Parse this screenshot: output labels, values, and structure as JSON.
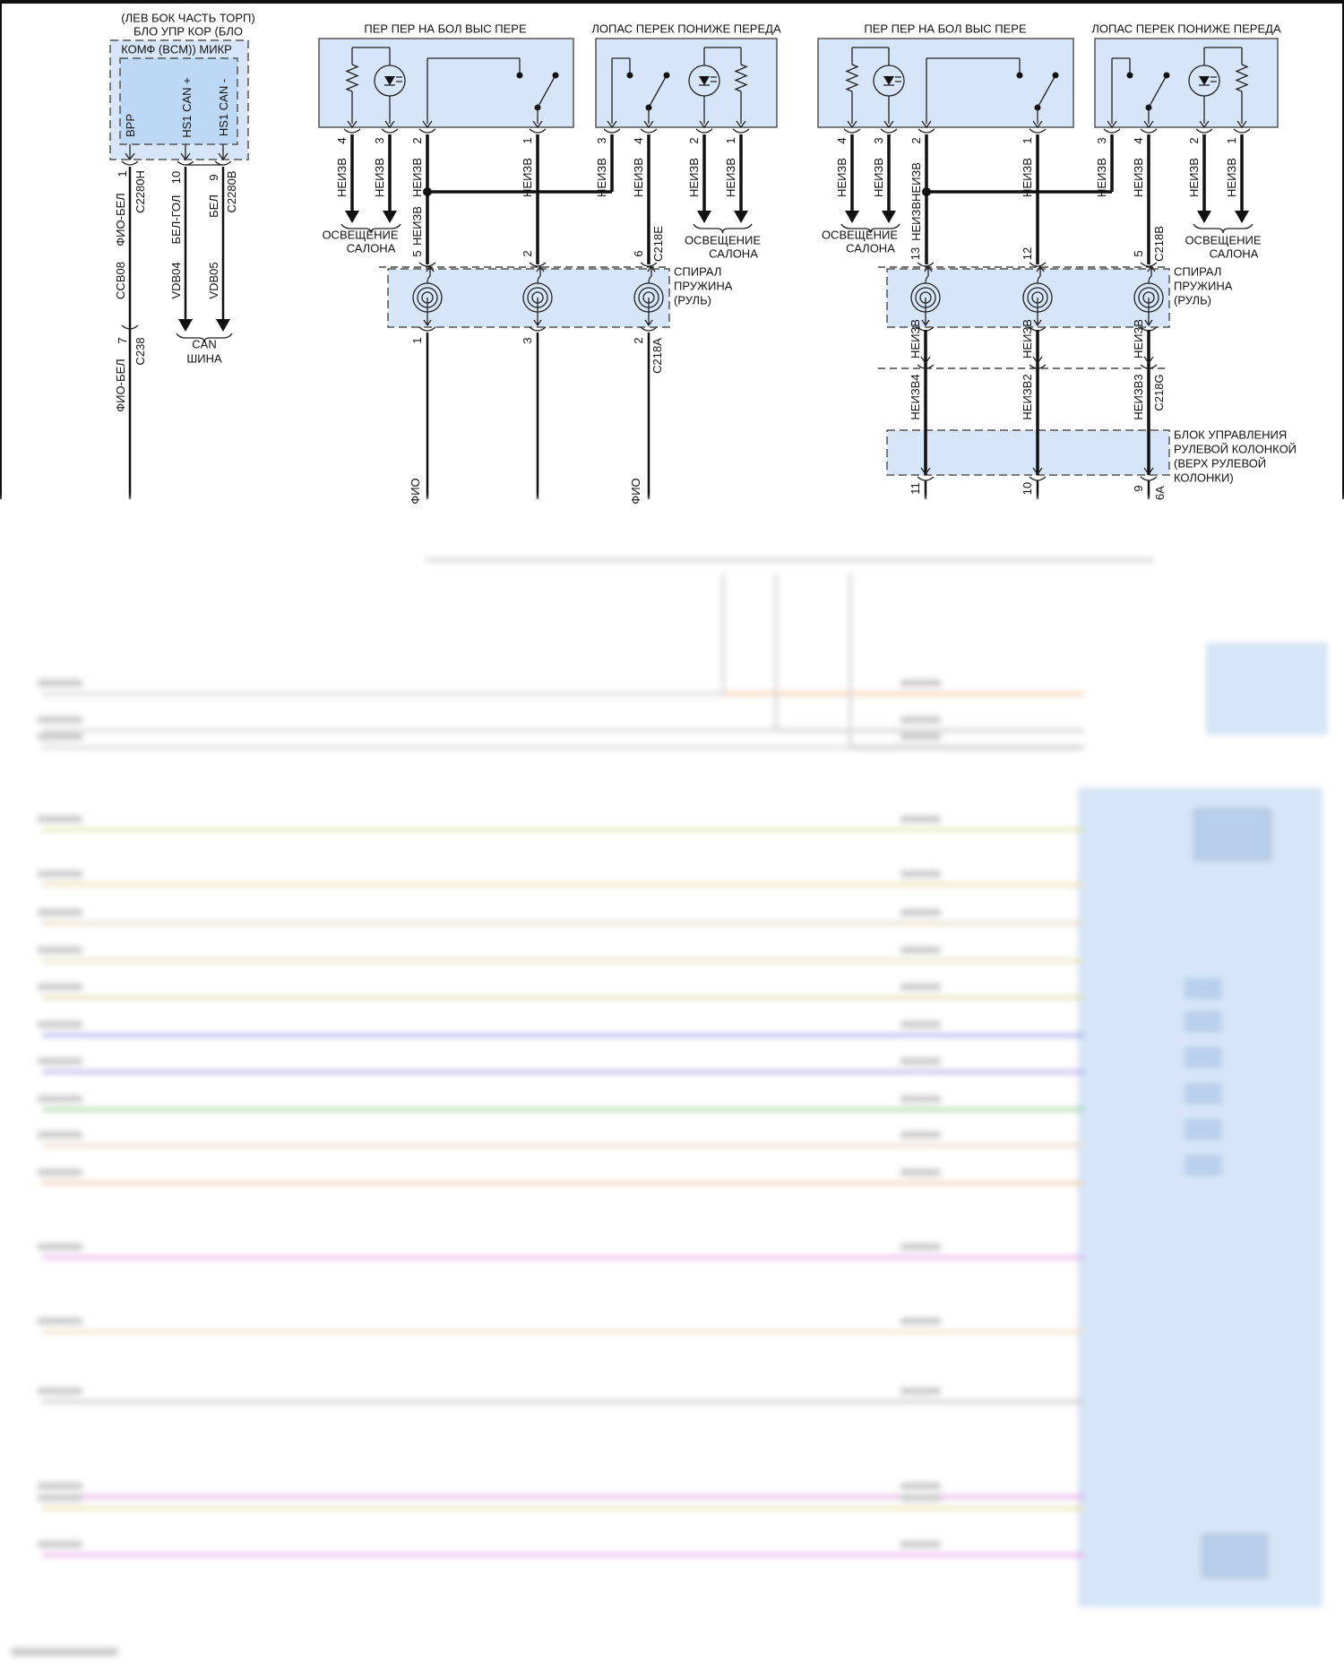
{
  "bcm": {
    "title_line1": "(ЛЕВ БОК ЧАСТЬ ТОРП)",
    "title_line2": "БЛО УПР КОР (БЛО",
    "title_line3": "КОМФ (BCM)) МИКР",
    "pin_bpp": "BPP",
    "pin_can_hi": "HS1 CAN +",
    "pin_can_lo": "HS1 CAN -",
    "wires": [
      {
        "pin": "1",
        "connector": "C2280H",
        "color_label": "ФИО-БЕЛ",
        "circuit": "CCB08",
        "color": "#c23fc2"
      },
      {
        "pin": "10",
        "connector": "",
        "color_label": "БЕЛ-ГОЛ",
        "circuit": "VDB04",
        "color": "#9a8fd0"
      },
      {
        "pin": "9",
        "connector": "C2280B",
        "color_label": "БЕЛ",
        "circuit": "VDB05",
        "color": "#cfcfcf"
      }
    ],
    "c238": {
      "pin": "7",
      "connector": "C238",
      "color_label": "ФИО-БЕЛ"
    },
    "can_bus": {
      "line1": "CAN",
      "line2": "ШИНА"
    }
  },
  "unknown": "НЕИЗВ",
  "unknown_double": "НЕИЗВНЕИЗВ",
  "interior_lighting": {
    "line1": "ОСВЕЩЕНИЕ",
    "line2": "САЛОНА"
  },
  "switches": [
    {
      "title": "ПЕР ПЕР НА БОЛ ВЫС ПЕРЕ",
      "pins": [
        "4",
        "3",
        "2",
        "1"
      ]
    },
    {
      "title": "ЛОПАС ПЕРЕК ПОНИЖЕ ПЕРЕДА",
      "pins": [
        "3",
        "4",
        "2",
        "1"
      ]
    },
    {
      "title": "ПЕР ПЕР НА БОЛ ВЫС ПЕРЕ",
      "pins": [
        "4",
        "3",
        "2",
        "1"
      ]
    },
    {
      "title": "ЛОПАС ПЕРЕК ПОНИЖЕ ПЕРЕДА",
      "pins": [
        "3",
        "4",
        "2",
        "1"
      ]
    }
  ],
  "clockspring": {
    "label_line1": "СПИРАЛ",
    "label_line2": "ПРУЖИНА",
    "label_line3": "(РУЛЬ)",
    "left": {
      "top_pins": [
        "5",
        "2",
        "6"
      ],
      "top_connector": "C218E",
      "bottom_pins": [
        "1",
        "3",
        "2"
      ],
      "bottom_connector": "C218A",
      "wire_colors": [
        "#f0b040",
        "#b4b4b4",
        "#6f8f45"
      ],
      "wire_labels": [
        "ФИО",
        "ФИО"
      ]
    },
    "right": {
      "top_pins": [
        "13",
        "12",
        "5"
      ],
      "top_connector": "C218B"
    }
  },
  "column_module": {
    "label_line1": "БЛОК УПРАВЛЕНИЯ",
    "label_line2": "РУЛЕВОЙ КОЛОНКОЙ",
    "label_line3": "(ВЕРХ РУЛЕВОЙ",
    "label_line4": "КОЛОНКИ)",
    "wire_labels": [
      "НЕИЗВ4",
      "НЕИЗВ2",
      "НЕИЗВ3"
    ],
    "connector": "C218G",
    "bottom_pins": [
      "11",
      "10",
      "9"
    ],
    "bottom_connector_partial": "6A",
    "wire_colors": [
      "#f0b040",
      "#b4b4b4",
      "#6f8f45"
    ]
  },
  "blurred_wire_colors": [
    "#f5c9a0",
    "#cfcfcf",
    "#bdbdbd",
    "#dfe8a0",
    "#eedcb0",
    "#e8d7c0",
    "#e6e0b0",
    "#e4dca8",
    "#9aa0e8",
    "#b0a0e8",
    "#9ad49a",
    "#efd7c2",
    "#f4c8a0",
    "#e8a8e8",
    "#f2dcc0",
    "#c8c8c8",
    "#e8a0e8",
    "#e8e4a0",
    "#e8a0e8"
  ]
}
